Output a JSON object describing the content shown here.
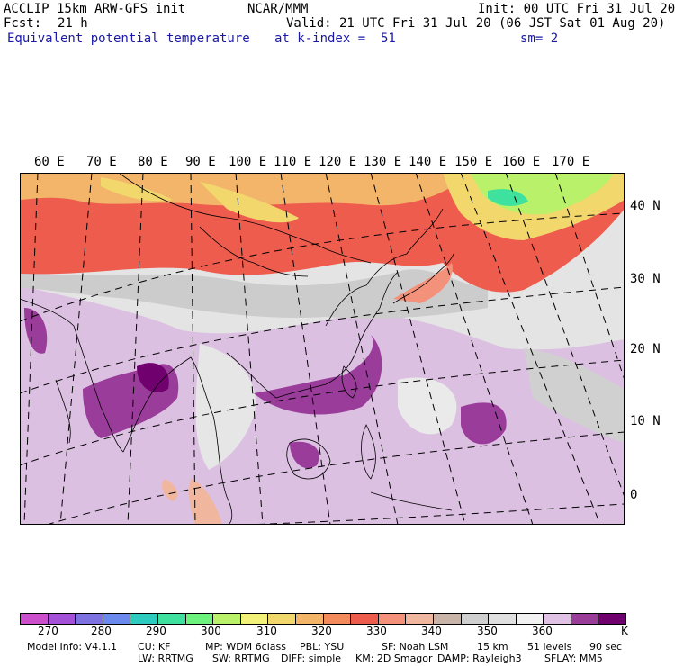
{
  "header": {
    "model_title": "ACCLIP 15km ARW-GFS init",
    "center": "NCAR/MMM",
    "init": "Init: 00 UTC Fri 31 Jul 20",
    "fcst_label": "Fcst:",
    "fcst_value": "21 h",
    "valid": "Valid: 21 UTC Fri 31 Jul 20 (06 JST Sat 01 Aug 20)",
    "field": "Equivalent potential temperature",
    "level": "at k-index =  51",
    "smoothing": "sm= 2"
  },
  "map": {
    "lon_labels": [
      "60 E",
      "70 E",
      "80 E",
      "90 E",
      "100 E",
      "110 E",
      "120 E",
      "130 E",
      "140 E",
      "150 E",
      "160 E",
      "170 E"
    ],
    "lat_labels": [
      "40 N",
      "30 N",
      "20 N",
      "10 N",
      "0"
    ]
  },
  "colorbar": {
    "colors": [
      "#cc4fcc",
      "#a451d8",
      "#7d72e0",
      "#6a8aee",
      "#2ecbc0",
      "#3ee29e",
      "#6ef27e",
      "#b9f26a",
      "#f2f27a",
      "#f2d76c",
      "#f2b56a",
      "#f48b5c",
      "#ee5c4e",
      "#f4917a",
      "#f0b79e",
      "#c8b4a8",
      "#cfcfcf",
      "#e0e0e0",
      "#f2f2f2",
      "#e0c2e4",
      "#9a3c9a",
      "#70006e"
    ],
    "labels": [
      "270",
      "280",
      "290",
      "300",
      "310",
      "320",
      "330",
      "340",
      "350",
      "360"
    ],
    "unit": "K"
  },
  "footer": {
    "line1": [
      "Model Info: V4.1.1",
      "CU: KF",
      "MP: WDM 6class",
      "PBL: YSU",
      "SF: Noah LSM",
      "15 km",
      "51 levels",
      "90 sec"
    ],
    "line2": [
      "LW: RRTMG",
      "SW: RRTMG",
      "DIFF: simple",
      "KM: 2D Smagor",
      "DAMP: Rayleigh3",
      "SFLAY: MM5"
    ]
  }
}
